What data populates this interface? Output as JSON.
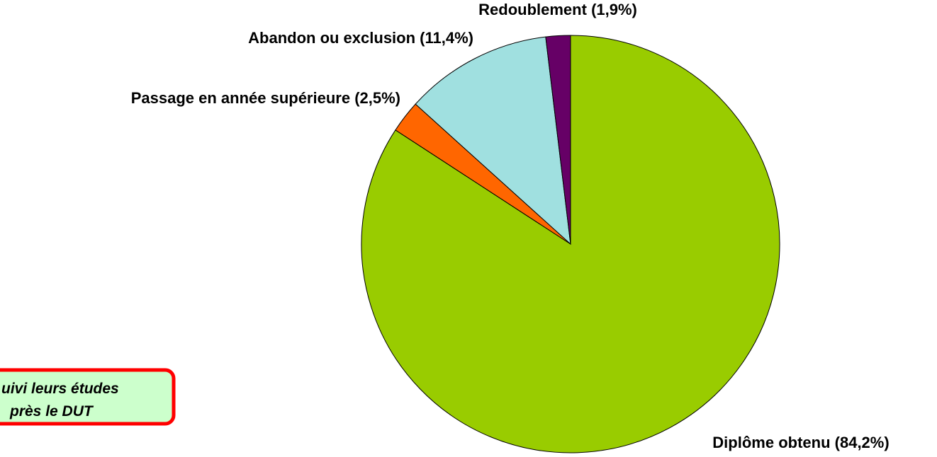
{
  "chart_data": {
    "type": "pie",
    "categories": [
      "Diplôme obtenu",
      "Passage en année supérieure",
      "Abandon ou exclusion",
      "Redoublement"
    ],
    "values": [
      84.2,
      2.5,
      11.4,
      1.9
    ],
    "value_labels": [
      "(84,2%)",
      "(2,5%)",
      "(11,4%)",
      "(1,9%)"
    ],
    "colors": [
      "#99cc00",
      "#ff6600",
      "#a0e0e0",
      "#660066"
    ],
    "annotations": [
      "uivi leurs études",
      "près le DUT"
    ]
  }
}
